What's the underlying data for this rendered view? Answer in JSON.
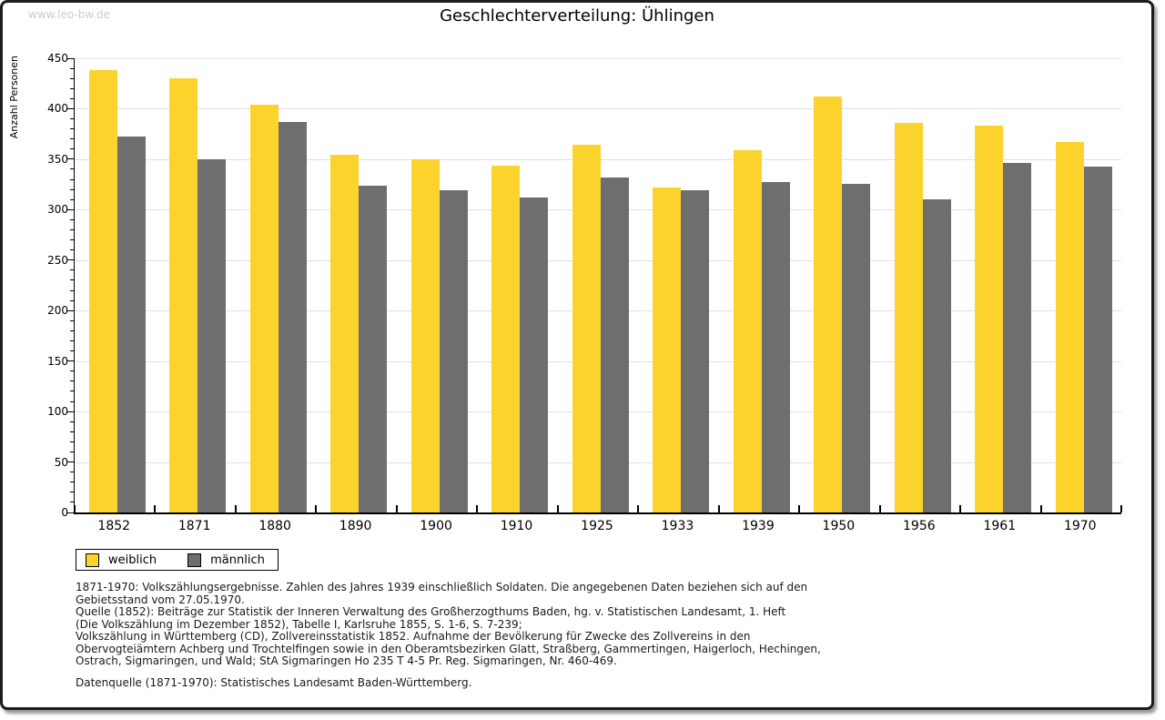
{
  "watermark": "www.leo-bw.de",
  "title": "Geschlechterverteilung: Ühlingen",
  "chart_data": {
    "type": "bar",
    "title": "Geschlechterverteilung: Ühlingen",
    "ylabel": "Anzahl Personen",
    "xlabel": "",
    "categories": [
      "1852",
      "1871",
      "1880",
      "1890",
      "1900",
      "1910",
      "1925",
      "1933",
      "1939",
      "1950",
      "1956",
      "1961",
      "1970"
    ],
    "series": [
      {
        "name": "weiblich",
        "color": "#FCD32D",
        "values": [
          438,
          430,
          404,
          354,
          350,
          344,
          364,
          322,
          359,
          412,
          386,
          383,
          367
        ]
      },
      {
        "name": "männlich",
        "color": "#6E6E6E",
        "values": [
          372,
          350,
          387,
          324,
          319,
          312,
          332,
          319,
          327,
          326,
          310,
          346,
          343
        ]
      }
    ],
    "ylim": [
      0,
      450
    ],
    "yticks": [
      0,
      50,
      100,
      150,
      200,
      250,
      300,
      350,
      400,
      450
    ],
    "ytick_step": 50,
    "ytick_minor_step": 10,
    "grid": true,
    "gridline_color": "#e1e1e1",
    "legend_position": "bottom-left"
  },
  "legend": {
    "items": [
      {
        "label": "weiblich",
        "color": "#FCD32D"
      },
      {
        "label": "männlich",
        "color": "#6E6E6E"
      }
    ]
  },
  "footnotes": [
    "1871-1970: Volkszählungsergebnisse. Zahlen des Jahres 1939 einschließlich Soldaten. Die angegebenen Daten beziehen sich auf den",
    "Gebietsstand vom 27.05.1970.",
    "Quelle (1852): Beiträge zur Statistik der Inneren Verwaltung des Großherzogthums Baden, hg. v. Statistischen Landesamt, 1. Heft",
    "(Die Volkszählung im Dezember 1852), Tabelle I, Karlsruhe 1855, S. 1-6, S. 7-239;",
    "Volkszählung in Württemberg (CD), Zollvereinsstatistik 1852. Aufnahme der Bevölkerung für Zwecke des Zollvereins in den",
    "Obervogteiämtern Achberg und Trochtelfingen sowie in den Oberamtsbezirken Glatt, Straßberg, Gammertingen, Haigerloch, Hechingen,",
    "Ostrach, Sigmaringen, und Wald; StA Sigmaringen Ho 235 T 4-5 Pr. Reg. Sigmaringen, Nr. 460-469."
  ],
  "datasource": "Datenquelle (1871-1970): Statistisches Landesamt Baden-Württemberg."
}
